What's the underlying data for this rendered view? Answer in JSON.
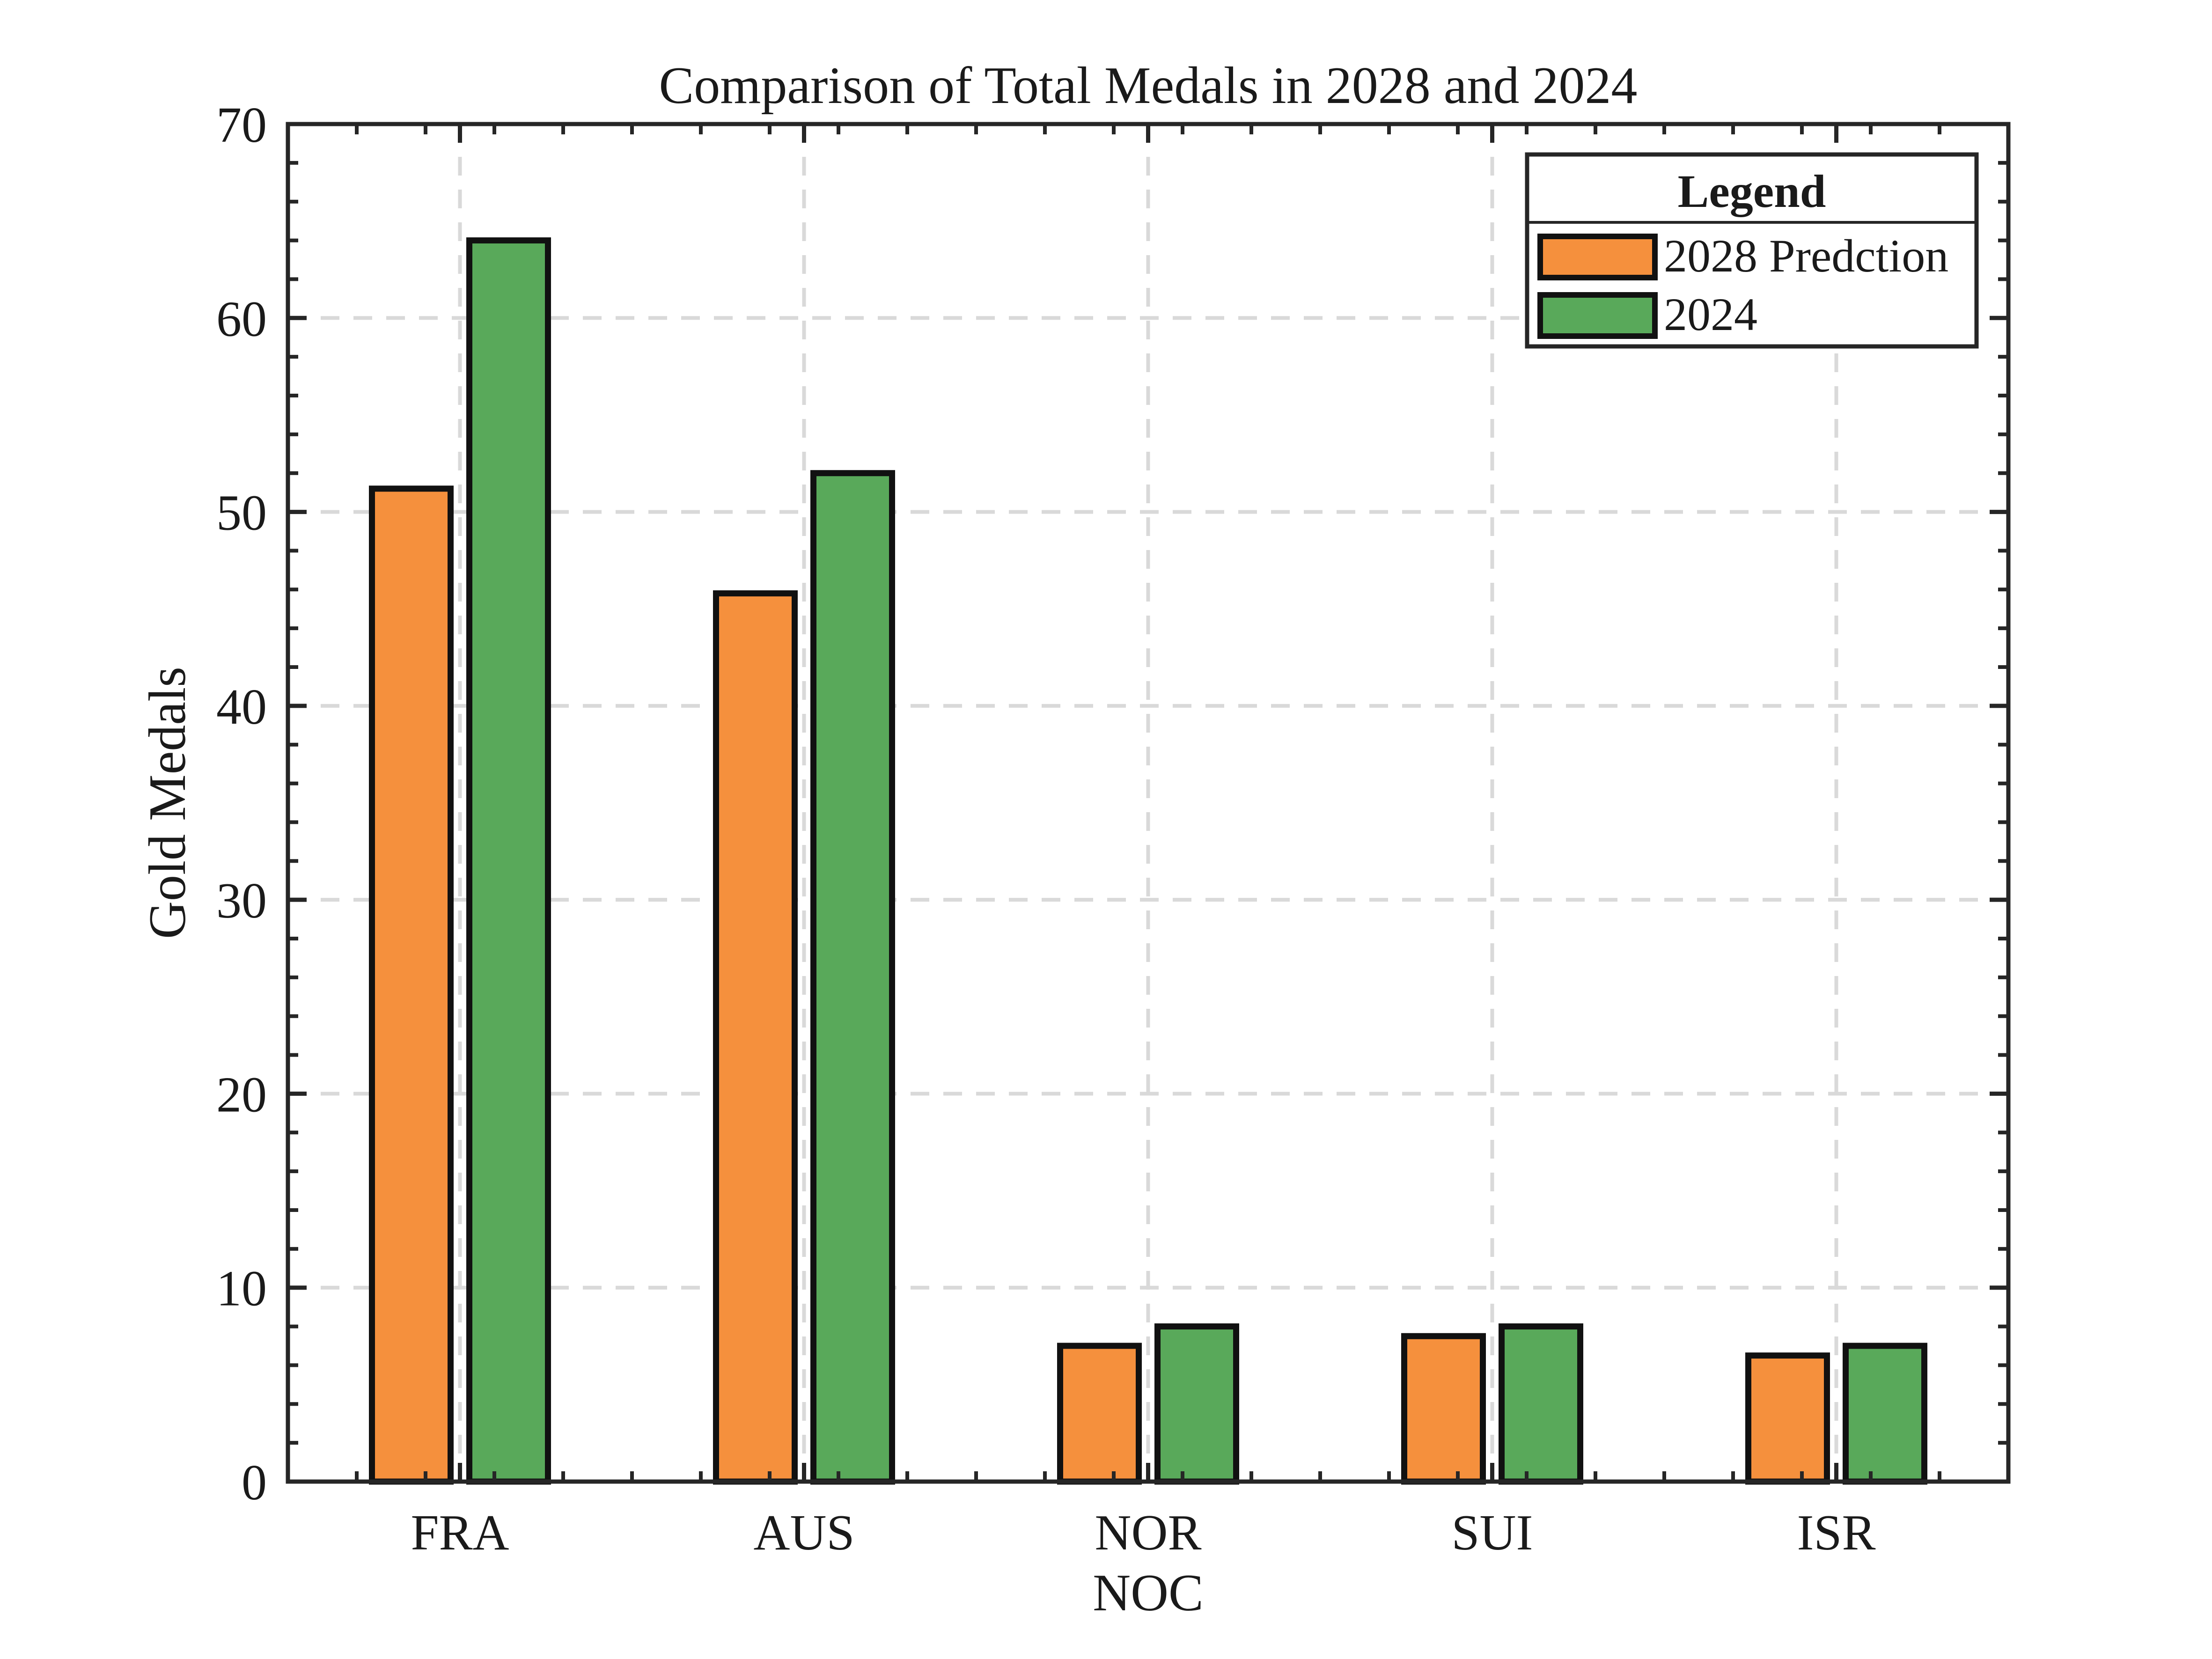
{
  "chart_data": {
    "type": "bar",
    "title": "Comparison of Total Medals in 2028 and 2024",
    "xlabel": "NOC",
    "ylabel": "Gold Medals",
    "categories": [
      "FRA",
      "AUS",
      "NOR",
      "SUI",
      "ISR"
    ],
    "series": [
      {
        "name": "2028 Predction",
        "color": "#f5903d",
        "values": [
          51.2,
          45.8,
          7.0,
          7.5,
          6.5
        ]
      },
      {
        "name": "2024",
        "color": "#59a95a",
        "values": [
          64,
          52,
          8,
          8,
          7
        ]
      }
    ],
    "ylim": [
      0,
      70
    ],
    "yticks": [
      0,
      10,
      20,
      30,
      40,
      50,
      60,
      70
    ],
    "grid": true,
    "legend": {
      "title": "Legend",
      "position": "top-right"
    }
  }
}
